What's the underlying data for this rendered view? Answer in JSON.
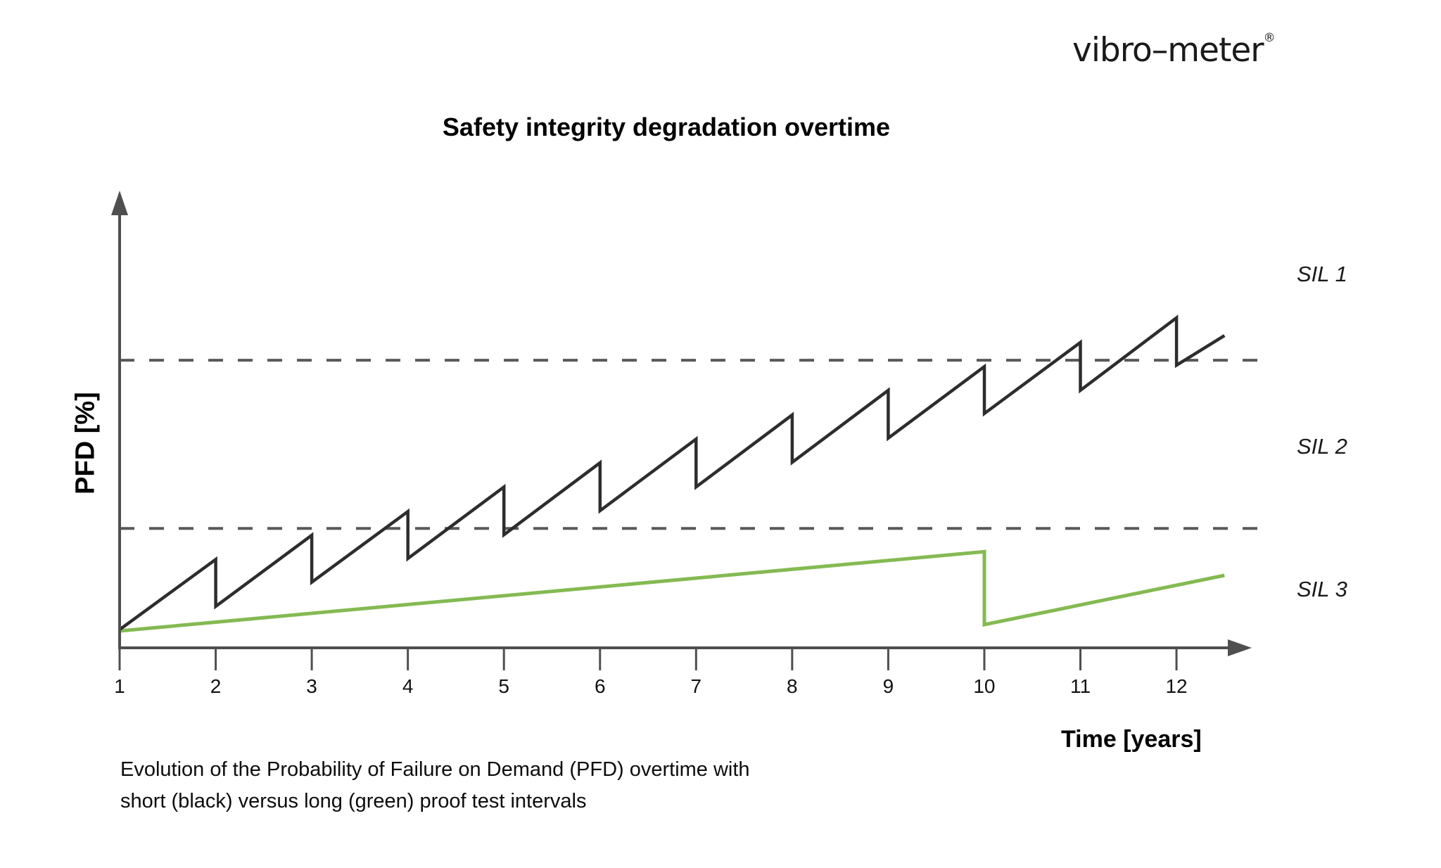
{
  "logo": {
    "text": "vibro–meter",
    "registered": "®"
  },
  "title": "Safety integrity degradation overtime",
  "axes": {
    "y_label": "PFD [%]",
    "x_label": "Time [years]"
  },
  "sil": [
    "SIL 1",
    "SIL 2",
    "SIL 3"
  ],
  "caption": {
    "line1": "Evolution of the Probability of Failure on Demand (PFD) overtime with",
    "line2": "short (black) versus long (green) proof test intervals"
  },
  "colors": {
    "black_line": "#2d2d2d",
    "green_line": "#84ba52",
    "axis": "#4f4f4f",
    "dashed": "#595959",
    "tick_label": "#111111"
  },
  "chart_data": {
    "type": "line",
    "title": "Safety integrity degradation overtime",
    "xlabel": "Time [years]",
    "ylabel": "PFD [%]",
    "x_ticks": [
      1,
      2,
      3,
      4,
      5,
      6,
      7,
      8,
      9,
      10,
      11,
      12
    ],
    "x_range": [
      1,
      12.5
    ],
    "y_numeric_scale_shown": false,
    "y_units": "relative PFD (0–100 of axis height)",
    "thresholds": [
      {
        "label": "upper dashed (SIL 1 / SIL 2)",
        "y": 63.1,
        "style": "dashed"
      },
      {
        "label": "lower dashed (SIL 2 / SIL 3)",
        "y": 26.2,
        "style": "dashed"
      }
    ],
    "band_labels": [
      {
        "label": "SIL 1",
        "position": "above upper dashed line"
      },
      {
        "label": "SIL 2",
        "position": "between dashed lines"
      },
      {
        "label": "SIL 3",
        "position": "below lower dashed line"
      }
    ],
    "series": [
      {
        "name": "short (black) proof test interval",
        "color": "#2d2d2d",
        "points": [
          [
            1,
            4.0
          ],
          [
            2,
            19.4
          ],
          [
            2,
            9.1
          ],
          [
            3,
            24.7
          ],
          [
            3,
            14.4
          ],
          [
            4,
            29.9
          ],
          [
            4,
            19.6
          ],
          [
            5,
            35.3
          ],
          [
            5,
            24.8
          ],
          [
            6,
            40.6
          ],
          [
            6,
            30.1
          ],
          [
            7,
            45.8
          ],
          [
            7,
            35.3
          ],
          [
            8,
            51.1
          ],
          [
            8,
            40.7
          ],
          [
            9,
            56.5
          ],
          [
            9,
            46.0
          ],
          [
            10,
            61.7
          ],
          [
            10,
            51.4
          ],
          [
            11,
            67.0
          ],
          [
            11,
            56.5
          ],
          [
            12,
            72.4
          ],
          [
            12,
            62.0
          ],
          [
            12.5,
            68.5
          ]
        ]
      },
      {
        "name": "long (green) proof test interval",
        "color": "#84ba52",
        "points": [
          [
            1,
            3.7
          ],
          [
            10,
            21.1
          ],
          [
            10,
            5.1
          ],
          [
            12.5,
            15.9
          ]
        ]
      }
    ]
  }
}
